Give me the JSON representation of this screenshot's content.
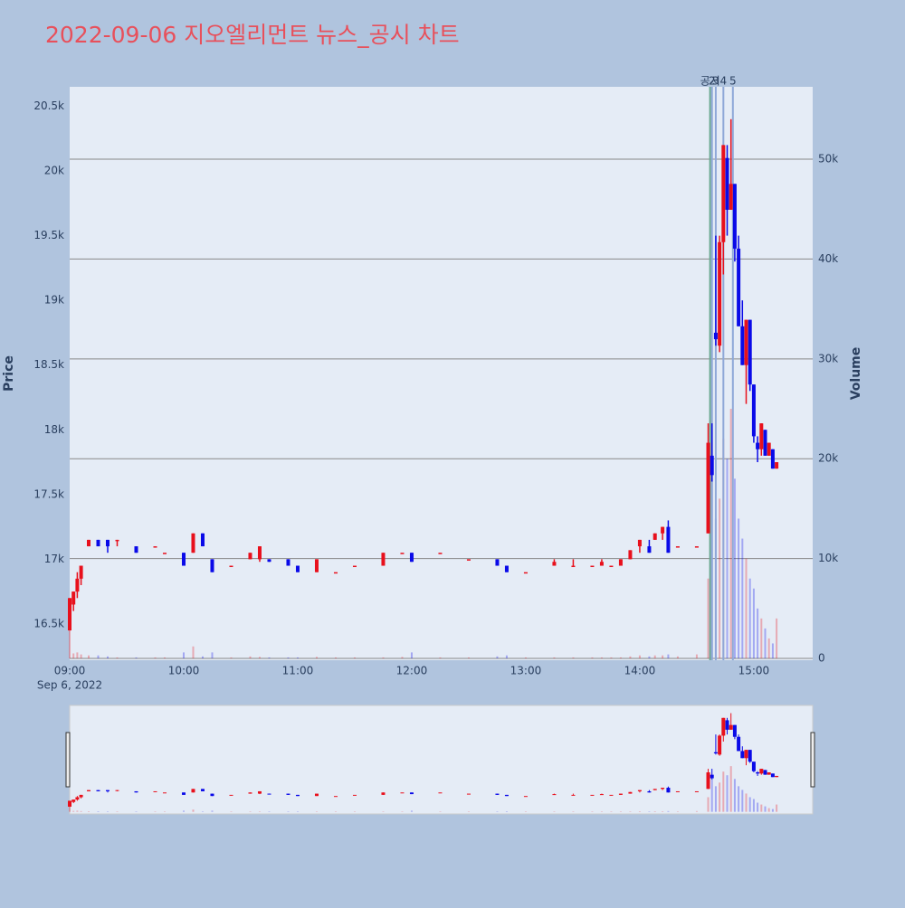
{
  "chart_data": {
    "type": "candlestick",
    "title": "2022-09-06 지오엘리먼트 뉴스_공시 차트",
    "y_title": "Price",
    "y2_title": "Volume",
    "x_date_label": "Sep 6, 2022",
    "increasing_color": "#e8101c",
    "decreasing_color": "#0a0ae8",
    "xlim": [
      "2022-09-06 09:00",
      "2022-09-06 15:31"
    ],
    "xticks": [
      {
        "value": "2022-09-06 09:00",
        "label": "09:00"
      },
      {
        "value": "2022-09-06 10:00",
        "label": "10:00"
      },
      {
        "value": "2022-09-06 11:00",
        "label": "11:00"
      },
      {
        "value": "2022-09-06 12:00",
        "label": "12:00"
      },
      {
        "value": "2022-09-06 13:00",
        "label": "13:00"
      },
      {
        "value": "2022-09-06 14:00",
        "label": "14:00"
      },
      {
        "value": "2022-09-06 15:00",
        "label": "15:00"
      }
    ],
    "ylim": [
      16220,
      20650
    ],
    "yticks": [
      {
        "value": 16500,
        "label": "16.5k"
      },
      {
        "value": 17000,
        "label": "17k"
      },
      {
        "value": 17500,
        "label": "17.5k"
      },
      {
        "value": 18000,
        "label": "18k"
      },
      {
        "value": 18500,
        "label": "18.5k"
      },
      {
        "value": 19000,
        "label": "19k"
      },
      {
        "value": 19500,
        "label": "19.5k"
      },
      {
        "value": 20000,
        "label": "20k"
      },
      {
        "value": 20500,
        "label": "20.5k"
      }
    ],
    "y2lim": [
      -180,
      57250
    ],
    "y2ticks": [
      0,
      {
        "value": 10000,
        "label": "10k"
      },
      {
        "value": 20000,
        "label": "20k"
      },
      {
        "value": 30000,
        "label": "30k"
      },
      {
        "value": 40000,
        "label": "40k"
      },
      {
        "value": 50000,
        "label": "50k"
      }
    ],
    "annotations": [
      {
        "x": "2022-09-06 14:37",
        "text": "공시",
        "color": "#6aa890"
      },
      {
        "x": "2022-09-06 14:38",
        "text": "2",
        "color": "#8fa8d8"
      },
      {
        "x": "2022-09-06 14:40",
        "text": "3",
        "color": "#8fa8d8"
      },
      {
        "x": "2022-09-06 14:44",
        "text": "4",
        "color": "#8fa8d8"
      },
      {
        "x": "2022-09-06 14:49",
        "text": "5",
        "color": "#8fa8d8"
      }
    ],
    "x": [
      "2022-09-06 09:00",
      "2022-09-06 09:02",
      "2022-09-06 09:04",
      "2022-09-06 09:06",
      "2022-09-06 09:10",
      "2022-09-06 09:15",
      "2022-09-06 09:20",
      "2022-09-06 09:25",
      "2022-09-06 09:35",
      "2022-09-06 09:45",
      "2022-09-06 09:50",
      "2022-09-06 10:00",
      "2022-09-06 10:05",
      "2022-09-06 10:10",
      "2022-09-06 10:15",
      "2022-09-06 10:25",
      "2022-09-06 10:35",
      "2022-09-06 10:40",
      "2022-09-06 10:45",
      "2022-09-06 10:55",
      "2022-09-06 11:00",
      "2022-09-06 11:10",
      "2022-09-06 11:20",
      "2022-09-06 11:30",
      "2022-09-06 11:45",
      "2022-09-06 11:55",
      "2022-09-06 12:00",
      "2022-09-06 12:15",
      "2022-09-06 12:30",
      "2022-09-06 12:45",
      "2022-09-06 12:50",
      "2022-09-06 13:00",
      "2022-09-06 13:15",
      "2022-09-06 13:25",
      "2022-09-06 13:35",
      "2022-09-06 13:40",
      "2022-09-06 13:45",
      "2022-09-06 13:50",
      "2022-09-06 13:55",
      "2022-09-06 14:00",
      "2022-09-06 14:05",
      "2022-09-06 14:08",
      "2022-09-06 14:12",
      "2022-09-06 14:15",
      "2022-09-06 14:20",
      "2022-09-06 14:30",
      "2022-09-06 14:36",
      "2022-09-06 14:38",
      "2022-09-06 14:40",
      "2022-09-06 14:42",
      "2022-09-06 14:44",
      "2022-09-06 14:46",
      "2022-09-06 14:48",
      "2022-09-06 14:50",
      "2022-09-06 14:52",
      "2022-09-06 14:54",
      "2022-09-06 14:56",
      "2022-09-06 14:58",
      "2022-09-06 15:00",
      "2022-09-06 15:02",
      "2022-09-06 15:04",
      "2022-09-06 15:06",
      "2022-09-06 15:08",
      "2022-09-06 15:10",
      "2022-09-06 15:12"
    ],
    "open": [
      16450,
      16650,
      16750,
      16850,
      17100,
      17150,
      17150,
      17150,
      17100,
      17100,
      17050,
      17050,
      17050,
      17200,
      17000,
      16950,
      17000,
      17000,
      17000,
      17000,
      16950,
      16900,
      16900,
      16950,
      16950,
      17050,
      17050,
      17050,
      17000,
      17000,
      16950,
      16900,
      16950,
      16950,
      16950,
      16950,
      16950,
      16950,
      17000,
      17100,
      17100,
      17150,
      17200,
      17250,
      17100,
      17100,
      17200,
      17800,
      18750,
      18650,
      19450,
      20100,
      19700,
      19900,
      19400,
      18800,
      18500,
      18850,
      18350,
      17900,
      17850,
      18000,
      17800,
      17850,
      17700
    ],
    "high": [
      16700,
      16750,
      16900,
      16950,
      17150,
      17150,
      17150,
      17150,
      17100,
      17100,
      17050,
      17050,
      17200,
      17200,
      17000,
      16950,
      17050,
      17100,
      17000,
      17000,
      16950,
      17000,
      16900,
      16950,
      17050,
      17050,
      17050,
      17050,
      17000,
      17000,
      16950,
      16900,
      17000,
      17000,
      16950,
      17000,
      16950,
      17000,
      17070,
      17150,
      17150,
      17200,
      17250,
      17300,
      17100,
      17100,
      18050,
      18050,
      19500,
      19500,
      20200,
      20200,
      20400,
      19900,
      19500,
      19000,
      18850,
      18850,
      18350,
      17950,
      18050,
      18000,
      17900,
      17850,
      17750
    ],
    "low": [
      16450,
      16600,
      16700,
      16800,
      17100,
      17100,
      17050,
      17100,
      17050,
      17100,
      17050,
      16950,
      17050,
      17100,
      16900,
      16950,
      17000,
      16980,
      16980,
      16950,
      16900,
      16900,
      16900,
      16950,
      16950,
      17050,
      16980,
      17050,
      17000,
      16950,
      16900,
      16900,
      16950,
      16950,
      16950,
      16950,
      16950,
      16950,
      17000,
      17050,
      17050,
      17150,
      17150,
      17050,
      17100,
      17100,
      17200,
      17600,
      18650,
      18600,
      19200,
      19500,
      19700,
      19300,
      18800,
      18500,
      18200,
      18300,
      17900,
      17750,
      17800,
      17800,
      17800,
      17700,
      17700
    ],
    "close": [
      16700,
      16750,
      16850,
      16950,
      17150,
      17100,
      17100,
      17150,
      17050,
      17100,
      17050,
      16950,
      17200,
      17100,
      16900,
      16950,
      17050,
      17100,
      16980,
      16950,
      16900,
      17000,
      16900,
      16950,
      17050,
      17050,
      16980,
      17050,
      17000,
      16950,
      16900,
      16900,
      16980,
      16950,
      16950,
      16980,
      16950,
      17000,
      17070,
      17150,
      17050,
      17200,
      17250,
      17050,
      17100,
      17100,
      17900,
      17650,
      18700,
      19450,
      20200,
      19700,
      19900,
      19400,
      18800,
      18500,
      18850,
      18350,
      17950,
      17850,
      18050,
      17800,
      17900,
      17700,
      17750
    ],
    "volume": [
      3000,
      500,
      600,
      400,
      300,
      300,
      200,
      100,
      100,
      100,
      100,
      600,
      1200,
      200,
      600,
      100,
      200,
      150,
      100,
      100,
      100,
      150,
      100,
      100,
      100,
      150,
      600,
      100,
      100,
      200,
      300,
      100,
      100,
      100,
      100,
      100,
      100,
      100,
      200,
      300,
      200,
      300,
      300,
      400,
      200,
      400,
      8000,
      18000,
      14000,
      16000,
      22000,
      20000,
      25000,
      18000,
      14000,
      12000,
      10000,
      8000,
      7000,
      5000,
      4000,
      3000,
      2000,
      1500,
      4000
    ]
  }
}
